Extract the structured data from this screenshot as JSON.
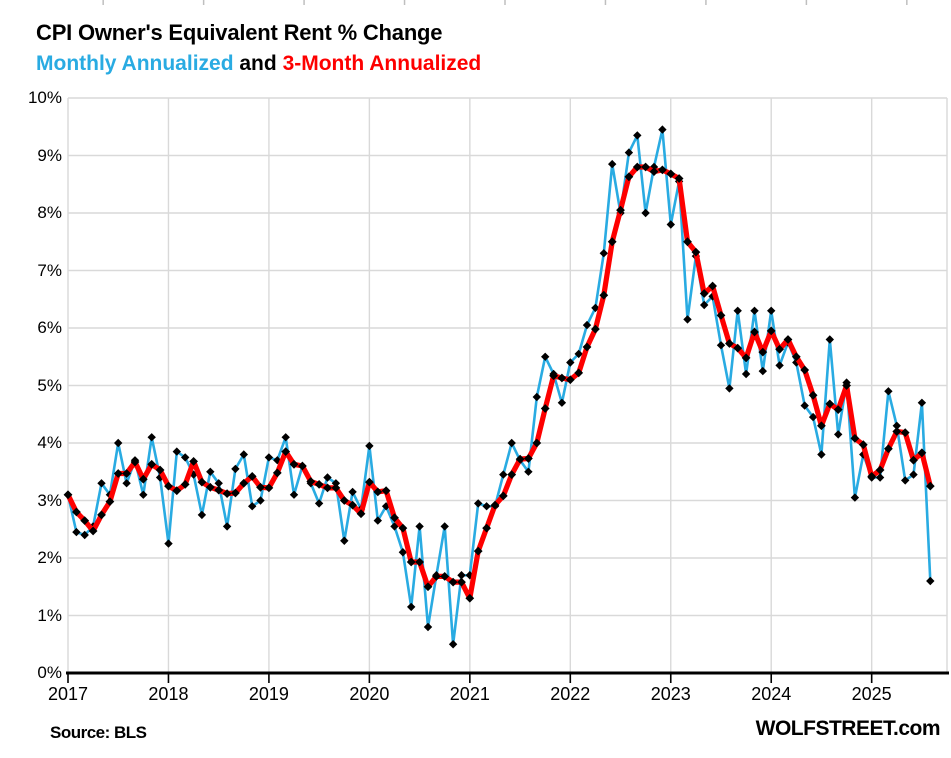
{
  "header": {
    "title": "CPI Owner's Equivalent Rent % Change",
    "subtitle_blue": "Monthly Annualized",
    "subtitle_and": " and ",
    "subtitle_red": "3-Month Annualized"
  },
  "footer": {
    "source": "Source: BLS",
    "brand": "WOLFSTREET.com"
  },
  "colors": {
    "blue": "#29ABE2",
    "red": "#FE0000",
    "marker": "#000000",
    "grid": "#D9D9D9",
    "axis": "#000000",
    "top_tick": "#BFBFBF"
  },
  "chart_data": {
    "type": "line",
    "title": "CPI Owner's Equivalent Rent % Change",
    "x_start": "2017-01",
    "x_end": "2025-08",
    "x_tick_labels": [
      "2017",
      "2018",
      "2019",
      "2020",
      "2021",
      "2022",
      "2023",
      "2024",
      "2025"
    ],
    "y_tick_labels": [
      "0%",
      "1%",
      "2%",
      "3%",
      "4%",
      "5%",
      "6%",
      "7%",
      "8%",
      "9%",
      "10%"
    ],
    "ylim": [
      0,
      10
    ],
    "grid": true,
    "legend_position": "in-subtitle",
    "marker": "black-diamond",
    "series": [
      {
        "name": "Monthly Annualized",
        "color": "#29ABE2",
        "values": [
          3.1,
          2.45,
          2.4,
          2.55,
          3.3,
          3.1,
          4.0,
          3.3,
          3.7,
          3.1,
          4.1,
          3.4,
          2.25,
          3.85,
          3.75,
          3.45,
          2.75,
          3.5,
          3.3,
          2.55,
          3.55,
          3.8,
          2.9,
          3.0,
          3.75,
          3.7,
          4.1,
          3.1,
          3.6,
          3.3,
          2.95,
          3.4,
          3.3,
          2.3,
          3.15,
          2.85,
          3.95,
          2.65,
          2.9,
          2.55,
          2.1,
          1.15,
          2.55,
          0.8,
          1.7,
          2.55,
          0.5,
          1.7,
          1.7,
          2.95,
          2.9,
          2.9,
          3.45,
          4.0,
          3.7,
          3.5,
          4.8,
          5.5,
          5.2,
          4.7,
          5.4,
          5.55,
          6.05,
          6.35,
          7.3,
          8.85,
          8.0,
          9.05,
          9.35,
          8.0,
          8.8,
          9.45,
          7.8,
          8.55,
          6.15,
          7.25,
          6.4,
          6.55,
          5.7,
          4.95,
          6.3,
          5.2,
          6.3,
          5.25,
          6.3,
          5.35,
          5.75,
          5.4,
          4.65,
          4.45,
          3.8,
          5.8,
          4.15,
          5.05,
          3.05,
          3.8,
          3.4,
          3.4,
          4.9,
          4.3,
          3.35,
          3.45,
          4.7,
          1.6
        ]
      },
      {
        "name": "3-Month Annualized",
        "color": "#FE0000",
        "values": [
          3.1,
          2.8,
          2.65,
          2.47,
          2.75,
          2.98,
          3.47,
          3.47,
          3.67,
          3.37,
          3.63,
          3.53,
          3.25,
          3.17,
          3.28,
          3.68,
          3.32,
          3.23,
          3.18,
          3.12,
          3.13,
          3.3,
          3.42,
          3.23,
          3.22,
          3.48,
          3.85,
          3.63,
          3.6,
          3.33,
          3.28,
          3.22,
          3.22,
          3.0,
          2.92,
          2.77,
          3.32,
          3.15,
          3.17,
          2.7,
          2.52,
          1.93,
          1.93,
          1.5,
          1.68,
          1.68,
          1.58,
          1.58,
          1.3,
          2.12,
          2.52,
          2.92,
          3.08,
          3.45,
          3.72,
          3.73,
          4.0,
          4.6,
          5.17,
          5.13,
          5.1,
          5.22,
          5.67,
          5.98,
          6.57,
          7.5,
          8.05,
          8.63,
          8.8,
          8.8,
          8.72,
          8.75,
          8.68,
          8.6,
          7.5,
          7.32,
          6.6,
          6.73,
          6.22,
          5.73,
          5.65,
          5.48,
          5.93,
          5.58,
          5.95,
          5.63,
          5.8,
          5.5,
          5.27,
          4.83,
          4.3,
          4.68,
          4.58,
          5.0,
          4.08,
          3.97,
          3.42,
          3.53,
          3.9,
          4.2,
          4.18,
          3.7,
          3.83,
          3.25
        ]
      }
    ]
  }
}
